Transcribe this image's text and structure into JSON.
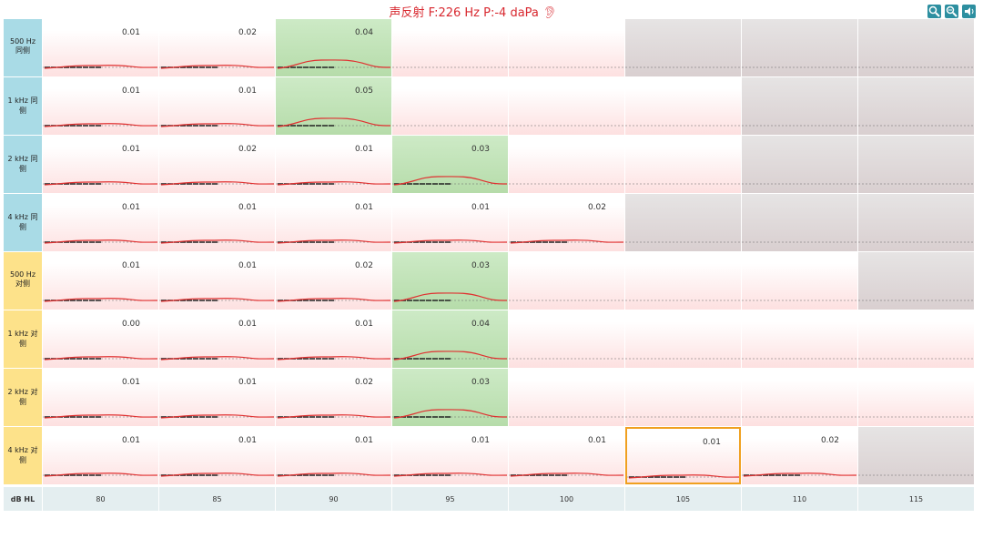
{
  "header": {
    "title": "声反射 F:226 Hz P:-4 daPa"
  },
  "table": {
    "corner": "dB HL",
    "levels": [
      "80",
      "85",
      "90",
      "95",
      "100",
      "105",
      "110",
      "115"
    ],
    "selected": [
      7,
      5
    ],
    "rows": [
      {
        "label": "500 Hz 同侧",
        "label_color": "#a9dbe6",
        "cells": [
          "0.01",
          "0.02",
          "0.04",
          null,
          null,
          null,
          null,
          null
        ],
        "reflex": 2,
        "disabled_from": 5
      },
      {
        "label": "1 kHz 同侧",
        "label_color": "#a9dbe6",
        "cells": [
          "0.01",
          "0.01",
          "0.05",
          null,
          null,
          null,
          null,
          null
        ],
        "reflex": 2,
        "disabled_from": 6
      },
      {
        "label": "2 kHz 同侧",
        "label_color": "#a9dbe6",
        "cells": [
          "0.01",
          "0.02",
          "0.01",
          "0.03",
          null,
          null,
          null,
          null
        ],
        "reflex": 3,
        "disabled_from": 6
      },
      {
        "label": "4 kHz 同侧",
        "label_color": "#a9dbe6",
        "cells": [
          "0.01",
          "0.01",
          "0.01",
          "0.01",
          "0.02",
          null,
          null,
          null
        ],
        "reflex": null,
        "disabled_from": 5
      },
      {
        "label": "500 Hz 对侧",
        "label_color": "#fde28a",
        "cells": [
          "0.01",
          "0.01",
          "0.02",
          "0.03",
          null,
          null,
          null,
          null
        ],
        "reflex": 3,
        "disabled_from": 7
      },
      {
        "label": "1 kHz 对侧",
        "label_color": "#fde28a",
        "cells": [
          "0.00",
          "0.01",
          "0.01",
          "0.04",
          null,
          null,
          null,
          null
        ],
        "reflex": 3,
        "disabled_from": 8
      },
      {
        "label": "2 kHz 对侧",
        "label_color": "#fde28a",
        "cells": [
          "0.01",
          "0.01",
          "0.02",
          "0.03",
          null,
          null,
          null,
          null
        ],
        "reflex": 3,
        "disabled_from": 8
      },
      {
        "label": "4 kHz 对侧",
        "label_color": "#fde28a",
        "cells": [
          "0.01",
          "0.01",
          "0.01",
          "0.01",
          "0.01",
          "0.01",
          "0.02",
          null
        ],
        "reflex": null,
        "disabled_from": 7
      }
    ]
  }
}
